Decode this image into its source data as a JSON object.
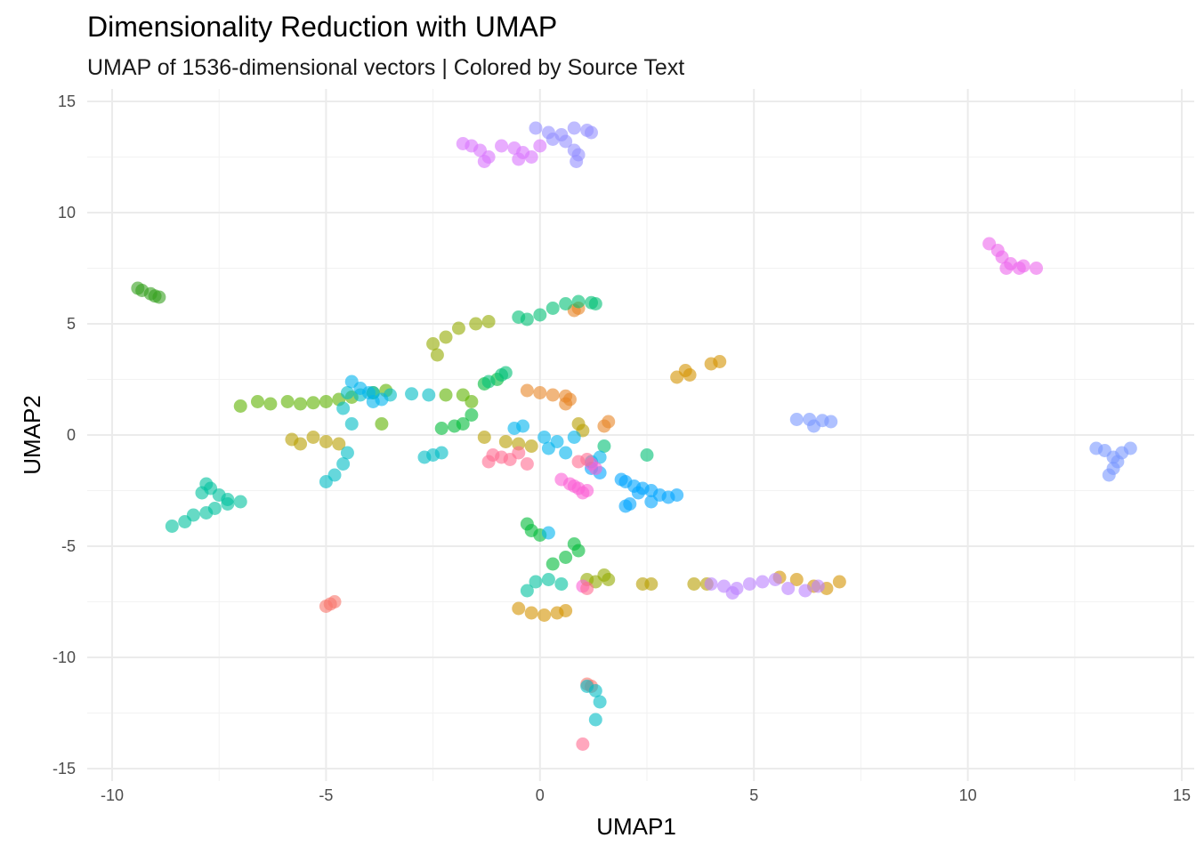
{
  "chart_data": {
    "type": "scatter",
    "title": "Dimensionality Reduction with UMAP",
    "subtitle": "UMAP of 1536-dimensional vectors | Colored by Source Text",
    "xlabel": "UMAP1",
    "ylabel": "UMAP2",
    "xlim": [
      -10,
      15
    ],
    "ylim": [
      -15,
      15
    ],
    "xticks": [
      -10,
      -5,
      0,
      5,
      10,
      15
    ],
    "yticks": [
      -15,
      -10,
      -5,
      0,
      5,
      10,
      15
    ],
    "xtick_labels": [
      "-10",
      "-5",
      "0",
      "5",
      "10",
      "15"
    ],
    "ytick_labels": [
      "-15",
      "-10",
      "-5",
      "0",
      "5",
      "10",
      "15"
    ],
    "grid": true,
    "legend": "none",
    "series": [
      {
        "name": "s01",
        "color": "#F8766D",
        "points": [
          [
            -5.0,
            -7.7
          ],
          [
            -4.9,
            -7.6
          ],
          [
            -4.8,
            -7.5
          ],
          [
            1.1,
            -11.2
          ],
          [
            1.2,
            -11.3
          ]
        ]
      },
      {
        "name": "s02",
        "color": "#E88526",
        "points": [
          [
            -0.3,
            2.0
          ],
          [
            0.0,
            1.9
          ],
          [
            0.3,
            1.8
          ],
          [
            0.6,
            1.75
          ],
          [
            0.7,
            1.6
          ],
          [
            0.6,
            1.4
          ],
          [
            1.6,
            0.6
          ],
          [
            1.5,
            0.4
          ],
          [
            0.9,
            5.7
          ],
          [
            0.8,
            5.6
          ]
        ]
      },
      {
        "name": "s03",
        "color": "#D39200",
        "points": [
          [
            -0.5,
            -7.8
          ],
          [
            -0.2,
            -8.0
          ],
          [
            0.1,
            -8.1
          ],
          [
            0.4,
            -8.0
          ],
          [
            0.6,
            -7.9
          ],
          [
            5.6,
            -6.4
          ],
          [
            6.0,
            -6.5
          ],
          [
            6.4,
            -6.8
          ],
          [
            6.7,
            -6.9
          ],
          [
            7.0,
            -6.6
          ],
          [
            3.4,
            2.9
          ],
          [
            3.5,
            2.7
          ],
          [
            3.2,
            2.6
          ],
          [
            4.0,
            3.2
          ],
          [
            4.2,
            3.3
          ]
        ]
      },
      {
        "name": "s04",
        "color": "#B79F00",
        "points": [
          [
            -5.8,
            -0.2
          ],
          [
            -5.6,
            -0.4
          ],
          [
            -5.3,
            -0.1
          ],
          [
            -5.0,
            -0.3
          ],
          [
            -4.7,
            -0.4
          ],
          [
            -1.3,
            -0.1
          ],
          [
            -0.8,
            -0.3
          ],
          [
            -0.5,
            -0.4
          ],
          [
            -0.2,
            -0.5
          ],
          [
            2.4,
            -6.7
          ],
          [
            2.6,
            -6.7
          ],
          [
            3.6,
            -6.7
          ],
          [
            3.9,
            -6.7
          ],
          [
            0.9,
            0.5
          ],
          [
            1.0,
            0.2
          ]
        ]
      },
      {
        "name": "s05",
        "color": "#93AA00",
        "points": [
          [
            -2.5,
            4.1
          ],
          [
            -2.2,
            4.4
          ],
          [
            -1.9,
            4.8
          ],
          [
            -1.5,
            5.0
          ],
          [
            -1.2,
            5.1
          ],
          [
            -2.4,
            3.6
          ],
          [
            1.5,
            -6.3
          ],
          [
            1.6,
            -6.5
          ],
          [
            1.3,
            -6.6
          ],
          [
            1.1,
            -6.5
          ]
        ]
      },
      {
        "name": "s06",
        "color": "#5EB300",
        "points": [
          [
            -7.0,
            1.3
          ],
          [
            -6.6,
            1.5
          ],
          [
            -6.3,
            1.4
          ],
          [
            -5.9,
            1.5
          ],
          [
            -5.6,
            1.4
          ],
          [
            -5.3,
            1.45
          ],
          [
            -5.0,
            1.5
          ],
          [
            -4.7,
            1.6
          ],
          [
            -4.4,
            1.7
          ],
          [
            -3.9,
            1.9
          ],
          [
            -3.6,
            2.0
          ],
          [
            -1.8,
            1.8
          ],
          [
            -1.6,
            1.5
          ],
          [
            -2.2,
            1.8
          ],
          [
            -3.7,
            0.5
          ]
        ]
      },
      {
        "name": "s07",
        "color": "#36A01E",
        "points": [
          [
            -9.4,
            6.6
          ],
          [
            -9.3,
            6.5
          ],
          [
            -9.1,
            6.35
          ],
          [
            -9.0,
            6.25
          ],
          [
            -8.9,
            6.2
          ]
        ]
      },
      {
        "name": "s08",
        "color": "#00BA38",
        "points": [
          [
            -2.3,
            0.3
          ],
          [
            -2.0,
            0.4
          ],
          [
            -1.8,
            0.5
          ],
          [
            -1.6,
            0.9
          ],
          [
            -0.3,
            -4.0
          ],
          [
            -0.2,
            -4.3
          ],
          [
            0.0,
            -4.5
          ],
          [
            0.3,
            -5.8
          ],
          [
            0.6,
            -5.5
          ],
          [
            0.9,
            -5.2
          ],
          [
            0.8,
            -4.9
          ],
          [
            -1.3,
            2.3
          ],
          [
            -1.0,
            2.5
          ]
        ]
      },
      {
        "name": "s09",
        "color": "#00BF74",
        "points": [
          [
            -0.3,
            5.2
          ],
          [
            0.0,
            5.4
          ],
          [
            0.3,
            5.7
          ],
          [
            0.6,
            5.9
          ],
          [
            0.9,
            6.0
          ],
          [
            1.2,
            5.95
          ],
          [
            1.3,
            5.9
          ],
          [
            -1.2,
            2.4
          ],
          [
            -0.9,
            2.7
          ],
          [
            -0.8,
            2.8
          ],
          [
            2.5,
            -0.9
          ],
          [
            1.5,
            -0.5
          ],
          [
            -0.5,
            5.3
          ]
        ]
      },
      {
        "name": "s10",
        "color": "#00C19F",
        "points": [
          [
            -8.6,
            -4.1
          ],
          [
            -8.3,
            -3.9
          ],
          [
            -8.1,
            -3.6
          ],
          [
            -7.8,
            -3.5
          ],
          [
            -7.6,
            -3.3
          ],
          [
            -7.3,
            -3.1
          ],
          [
            -7.0,
            -3.0
          ],
          [
            -7.9,
            -2.6
          ],
          [
            -7.7,
            -2.4
          ],
          [
            -7.5,
            -2.7
          ],
          [
            -7.3,
            -2.9
          ],
          [
            -7.8,
            -2.2
          ],
          [
            -0.3,
            -7.0
          ],
          [
            -0.1,
            -6.6
          ],
          [
            0.2,
            -6.5
          ],
          [
            0.5,
            -6.7
          ]
        ]
      },
      {
        "name": "s11",
        "color": "#00BDC4",
        "points": [
          [
            -4.5,
            1.9
          ],
          [
            -4.2,
            1.8
          ],
          [
            -3.9,
            1.9
          ],
          [
            -3.5,
            1.8
          ],
          [
            -3.0,
            1.85
          ],
          [
            -2.6,
            1.8
          ],
          [
            -5.0,
            -2.1
          ],
          [
            -4.8,
            -1.8
          ],
          [
            -4.6,
            -1.3
          ],
          [
            -4.5,
            -0.8
          ],
          [
            -4.4,
            0.5
          ],
          [
            -4.6,
            1.2
          ],
          [
            -2.7,
            -1.0
          ],
          [
            -2.5,
            -0.9
          ],
          [
            -2.3,
            -0.8
          ],
          [
            1.1,
            -11.3
          ],
          [
            1.3,
            -11.5
          ],
          [
            1.4,
            -12.0
          ],
          [
            1.3,
            -12.8
          ]
        ]
      },
      {
        "name": "s12",
        "color": "#00B4EF",
        "points": [
          [
            -4.4,
            2.4
          ],
          [
            -4.2,
            2.1
          ],
          [
            -4.0,
            1.9
          ],
          [
            -3.9,
            1.5
          ],
          [
            -3.7,
            1.6
          ],
          [
            0.1,
            -0.1
          ],
          [
            0.4,
            -0.3
          ],
          [
            0.8,
            -0.1
          ],
          [
            0.2,
            -0.6
          ],
          [
            0.6,
            -0.8
          ],
          [
            -0.6,
            0.3
          ],
          [
            -0.4,
            0.4
          ],
          [
            0.2,
            -4.4
          ],
          [
            1.2,
            -1.2
          ],
          [
            1.4,
            -1.0
          ]
        ]
      },
      {
        "name": "s13",
        "color": "#00A5FF",
        "points": [
          [
            2.0,
            -2.1
          ],
          [
            2.2,
            -2.3
          ],
          [
            2.4,
            -2.4
          ],
          [
            2.6,
            -2.5
          ],
          [
            2.8,
            -2.7
          ],
          [
            3.0,
            -2.8
          ],
          [
            3.2,
            -2.7
          ],
          [
            2.6,
            -3.0
          ],
          [
            2.3,
            -2.6
          ],
          [
            1.9,
            -2.0
          ],
          [
            2.1,
            -3.1
          ],
          [
            2.0,
            -3.2
          ],
          [
            1.4,
            -1.7
          ],
          [
            1.2,
            -1.5
          ]
        ]
      },
      {
        "name": "s14",
        "color": "#7997FF",
        "points": [
          [
            6.0,
            0.7
          ],
          [
            6.3,
            0.7
          ],
          [
            6.6,
            0.65
          ],
          [
            6.8,
            0.6
          ],
          [
            6.4,
            0.4
          ],
          [
            13.0,
            -0.6
          ],
          [
            13.2,
            -0.7
          ],
          [
            13.4,
            -1.0
          ],
          [
            13.6,
            -0.8
          ],
          [
            13.8,
            -0.6
          ],
          [
            13.4,
            -1.5
          ],
          [
            13.3,
            -1.8
          ],
          [
            13.5,
            -1.2
          ]
        ]
      },
      {
        "name": "s15",
        "color": "#9590FF",
        "points": [
          [
            -0.1,
            13.8
          ],
          [
            0.2,
            13.6
          ],
          [
            0.5,
            13.5
          ],
          [
            0.8,
            13.8
          ],
          [
            1.1,
            13.7
          ],
          [
            1.2,
            13.6
          ],
          [
            0.9,
            12.6
          ],
          [
            0.85,
            12.3
          ],
          [
            0.8,
            12.8
          ],
          [
            0.6,
            13.2
          ],
          [
            0.3,
            13.3
          ]
        ]
      },
      {
        "name": "s16",
        "color": "#BB81FF",
        "points": [
          [
            4.0,
            -6.7
          ],
          [
            4.3,
            -6.8
          ],
          [
            4.6,
            -6.9
          ],
          [
            4.9,
            -6.7
          ],
          [
            5.2,
            -6.6
          ],
          [
            5.5,
            -6.5
          ],
          [
            5.8,
            -6.9
          ],
          [
            6.2,
            -7.0
          ],
          [
            6.5,
            -6.8
          ],
          [
            4.5,
            -7.1
          ]
        ]
      },
      {
        "name": "s17",
        "color": "#D874FD",
        "points": [
          [
            -1.8,
            13.1
          ],
          [
            -1.6,
            13.0
          ],
          [
            -1.4,
            12.8
          ],
          [
            -1.2,
            12.5
          ],
          [
            -1.3,
            12.3
          ],
          [
            -0.9,
            13.0
          ],
          [
            -0.6,
            12.9
          ],
          [
            -0.4,
            12.7
          ],
          [
            -0.2,
            12.5
          ],
          [
            -0.5,
            12.4
          ],
          [
            0.0,
            13.0
          ]
        ]
      },
      {
        "name": "s18",
        "color": "#ED68ED",
        "points": [
          [
            10.5,
            8.6
          ],
          [
            10.7,
            8.3
          ],
          [
            10.8,
            8.0
          ],
          [
            11.0,
            7.7
          ],
          [
            11.3,
            7.6
          ],
          [
            11.6,
            7.5
          ],
          [
            10.9,
            7.5
          ],
          [
            11.2,
            7.5
          ]
        ]
      },
      {
        "name": "s19",
        "color": "#FC61D5",
        "points": [
          [
            0.5,
            -2.0
          ],
          [
            0.7,
            -2.2
          ],
          [
            0.9,
            -2.4
          ],
          [
            1.1,
            -2.5
          ],
          [
            1.0,
            -2.6
          ],
          [
            0.8,
            -2.3
          ],
          [
            1.3,
            -1.5
          ],
          [
            1.2,
            -1.3
          ],
          [
            1.0,
            -6.8
          ]
        ]
      },
      {
        "name": "s20",
        "color": "#FF6C91",
        "points": [
          [
            -1.2,
            -1.2
          ],
          [
            -0.9,
            -1.0
          ],
          [
            -0.7,
            -1.1
          ],
          [
            -0.5,
            -0.8
          ],
          [
            -0.3,
            -1.3
          ],
          [
            -1.1,
            -0.9
          ],
          [
            0.9,
            -1.2
          ],
          [
            1.1,
            -1.1
          ],
          [
            1.1,
            -6.9
          ],
          [
            1.0,
            -13.9
          ]
        ]
      }
    ]
  }
}
